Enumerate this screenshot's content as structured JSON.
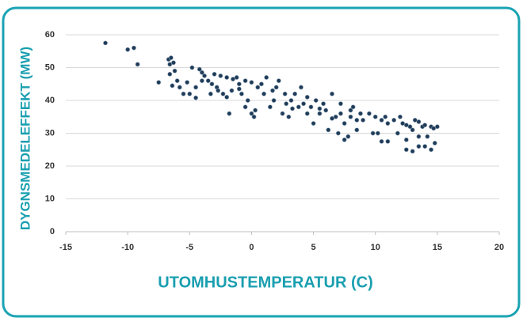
{
  "chart_data": {
    "type": "scatter",
    "xlabel": "UTOMHUSTEMPERATUR (C)",
    "ylabel": "DYGNSMEDELEFFEKT (MW)",
    "color": "#1f3b57",
    "grid": true,
    "xlim": [
      -15,
      20
    ],
    "xticks": [
      -15,
      -10,
      -5,
      0,
      5,
      10,
      15,
      20
    ],
    "ylim": [
      0,
      60
    ],
    "yticks": [
      0,
      10,
      20,
      30,
      40,
      50,
      60
    ],
    "x": [
      -11.8,
      -10,
      -9.5,
      -9.2,
      -7.5,
      -6.7,
      -6.5,
      -6.6,
      -6.3,
      -6.2,
      -6.6,
      -6.4,
      -6,
      -5.8,
      -5.5,
      -5,
      -5.2,
      -4.8,
      -4.5,
      -4.2,
      -4,
      -3.8,
      -4,
      -3.5,
      -3.2,
      -3,
      -2.8,
      -2.5,
      -2.3,
      -2,
      -2,
      -1.8,
      -1.5,
      -1.2,
      -1,
      -0.8,
      -0.5,
      -0.3,
      0,
      0,
      0.2,
      0.5,
      0.8,
      1,
      1.2,
      1.5,
      1.8,
      2,
      2.2,
      2.5,
      2.8,
      3,
      3.2,
      3.5,
      3.8,
      4,
      4.2,
      4.5,
      4.8,
      5,
      5.2,
      5.5,
      5.8,
      6,
      6.2,
      6.5,
      6.8,
      7,
      7.2,
      7.5,
      7.5,
      7.8,
      8,
      8.2,
      8.5,
      8.5,
      8.8,
      9.5,
      9.8,
      10,
      10.2,
      10.5,
      10.5,
      11,
      11,
      11.5,
      11.8,
      12,
      12.2,
      12.5,
      12.5,
      12.8,
      13,
      13,
      13.2,
      13.5,
      13.5,
      13.8,
      14,
      14,
      14.2,
      14.5,
      14.5,
      14.8,
      15,
      -4.5,
      -3.3,
      -2.7,
      -1.6,
      -1,
      -0.5,
      0.3,
      1.7,
      2.7,
      3.3,
      4.5,
      5.5,
      6.5,
      7.2,
      8,
      9,
      10.8,
      12.5,
      13.5,
      14.7
    ],
    "values": [
      57.5,
      55.5,
      56,
      51,
      45.5,
      52.5,
      53,
      51,
      51.5,
      49,
      48,
      44.5,
      46,
      44,
      42,
      42,
      45.5,
      50,
      44,
      49.5,
      48.5,
      47.5,
      46,
      46,
      45,
      48,
      44,
      47.5,
      42,
      41,
      47,
      36,
      46.5,
      47,
      45,
      42,
      46,
      40,
      45.5,
      36,
      35,
      44,
      45,
      42,
      47,
      38,
      40,
      44,
      46,
      36,
      39,
      35,
      40,
      42,
      38,
      44,
      39,
      36,
      38,
      33,
      40,
      36,
      39,
      37,
      31,
      42,
      35,
      30,
      39,
      33,
      28,
      29,
      37,
      38,
      34,
      31,
      36,
      36,
      30,
      35,
      30,
      34,
      27.5,
      33,
      27.5,
      34,
      30,
      35,
      33,
      28,
      25,
      32,
      31,
      24.5,
      34,
      29,
      26,
      32,
      32.5,
      26,
      29,
      25,
      32,
      27,
      32,
      40.8,
      42,
      43,
      43,
      43.5,
      38,
      37,
      43,
      42,
      37.5,
      41,
      37.5,
      34.5,
      36,
      35,
      34,
      35,
      32.5,
      33.5,
      31.5
    ]
  }
}
